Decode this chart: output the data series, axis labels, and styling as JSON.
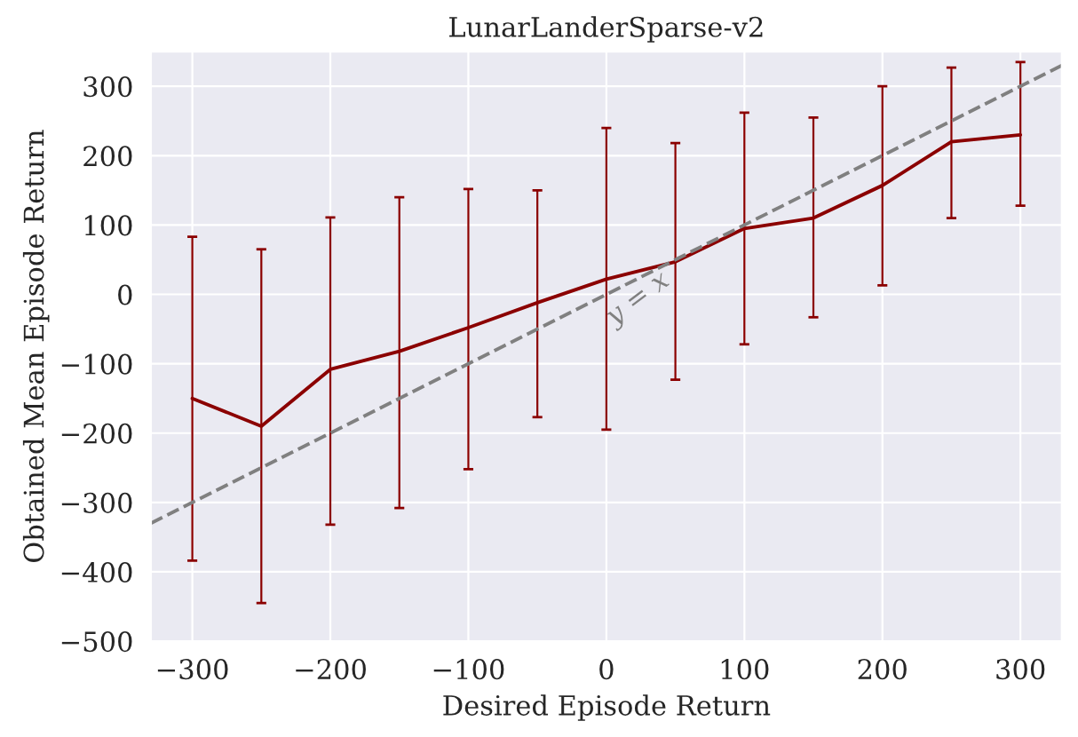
{
  "chart_data": {
    "type": "line",
    "title": "LunarLanderSparse-v2",
    "xlabel": "Desired Episode Return",
    "ylabel": "Obtained Mean Episode Return",
    "series": [
      {
        "color": "#8b0000",
        "line_style": "solid",
        "x": [
          -300,
          -250,
          -200,
          -150,
          -100,
          -50,
          0,
          50,
          100,
          150,
          200,
          250,
          300
        ],
        "values": [
          -150,
          -190,
          -108,
          -82,
          -48,
          -12,
          22,
          47,
          95,
          110,
          157,
          220,
          230
        ],
        "errors": [
          [
            -384,
            83
          ],
          [
            -445,
            65
          ],
          [
            -332,
            111
          ],
          [
            -308,
            140
          ],
          [
            -252,
            152
          ],
          [
            -177,
            150
          ],
          [
            -195,
            240
          ],
          [
            -123,
            218
          ],
          [
            -72,
            262
          ],
          [
            -33,
            255
          ],
          [
            13,
            300
          ],
          [
            110,
            327
          ],
          [
            128,
            335
          ]
        ]
      },
      {
        "color": "#808080",
        "line_style": "dashed",
        "x": [
          -330,
          330
        ],
        "values": [
          -330,
          330
        ]
      }
    ],
    "annotations": [
      "y = x"
    ],
    "xlim": [
      -330,
      330
    ],
    "ylim": [
      -500,
      350
    ],
    "xticks": [
      {
        "value": -300,
        "label": "−300"
      },
      {
        "value": -200,
        "label": "−200"
      },
      {
        "value": -100,
        "label": "−100"
      },
      0,
      100,
      200,
      300
    ],
    "yticks": [
      {
        "value": -500,
        "label": "−500"
      },
      {
        "value": -400,
        "label": "−400"
      },
      {
        "value": -300,
        "label": "−300"
      },
      {
        "value": -200,
        "label": "−200"
      },
      {
        "value": -100,
        "label": "−100"
      },
      0,
      100,
      200,
      300
    ],
    "grid": true
  }
}
